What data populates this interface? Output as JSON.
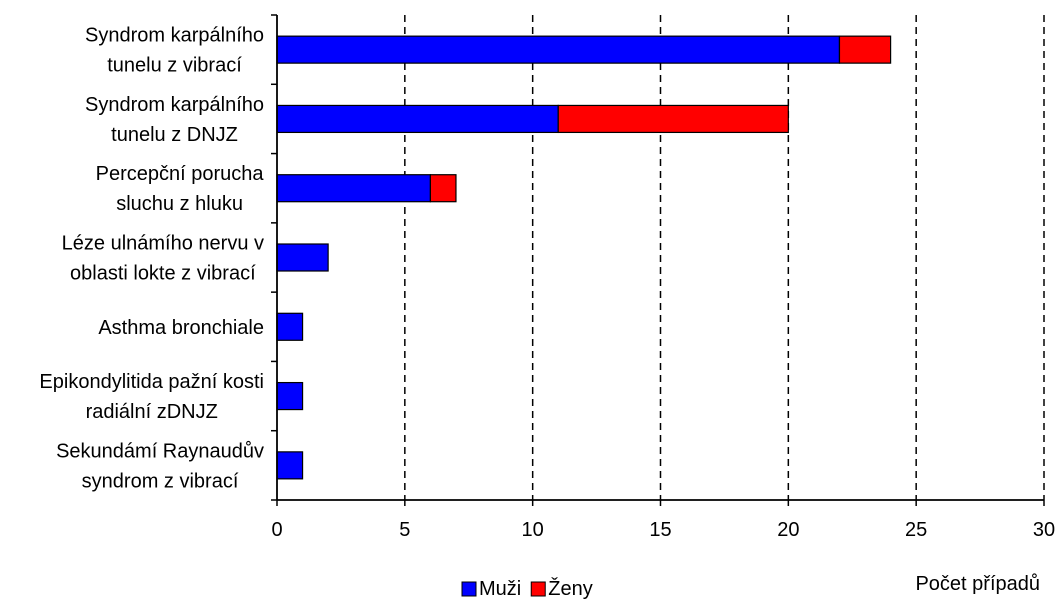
{
  "chart_data": {
    "type": "bar",
    "orientation": "horizontal",
    "stacked": true,
    "categories": [
      [
        "Syndrom karpálního",
        "tunelu z vibrací"
      ],
      [
        "Syndrom karpálního",
        "tunelu z DNJZ"
      ],
      [
        "Percepční porucha",
        "sluchu z hluku"
      ],
      [
        "Léze ulnámího nervu v",
        "oblasti lokte z vibrací"
      ],
      [
        "Asthma bronchiale"
      ],
      [
        "Epikondylitida pažní kosti",
        "radiální zDNJZ"
      ],
      [
        "Sekundámí Raynaudův",
        "syndrom z vibrací"
      ]
    ],
    "series": [
      {
        "name": "Muži",
        "color": "#0000ff",
        "values": [
          22,
          11,
          6,
          2,
          1,
          1,
          1
        ]
      },
      {
        "name": "Ženy",
        "color": "#ff0000",
        "values": [
          2,
          9,
          1,
          0,
          0,
          0,
          0
        ]
      }
    ],
    "xlabel": "Počet případů",
    "xlim": [
      0,
      30
    ],
    "xticks": [
      0,
      5,
      10,
      15,
      20,
      25,
      30
    ],
    "grid": "vertical-dashed",
    "legend_position": "bottom-center"
  }
}
